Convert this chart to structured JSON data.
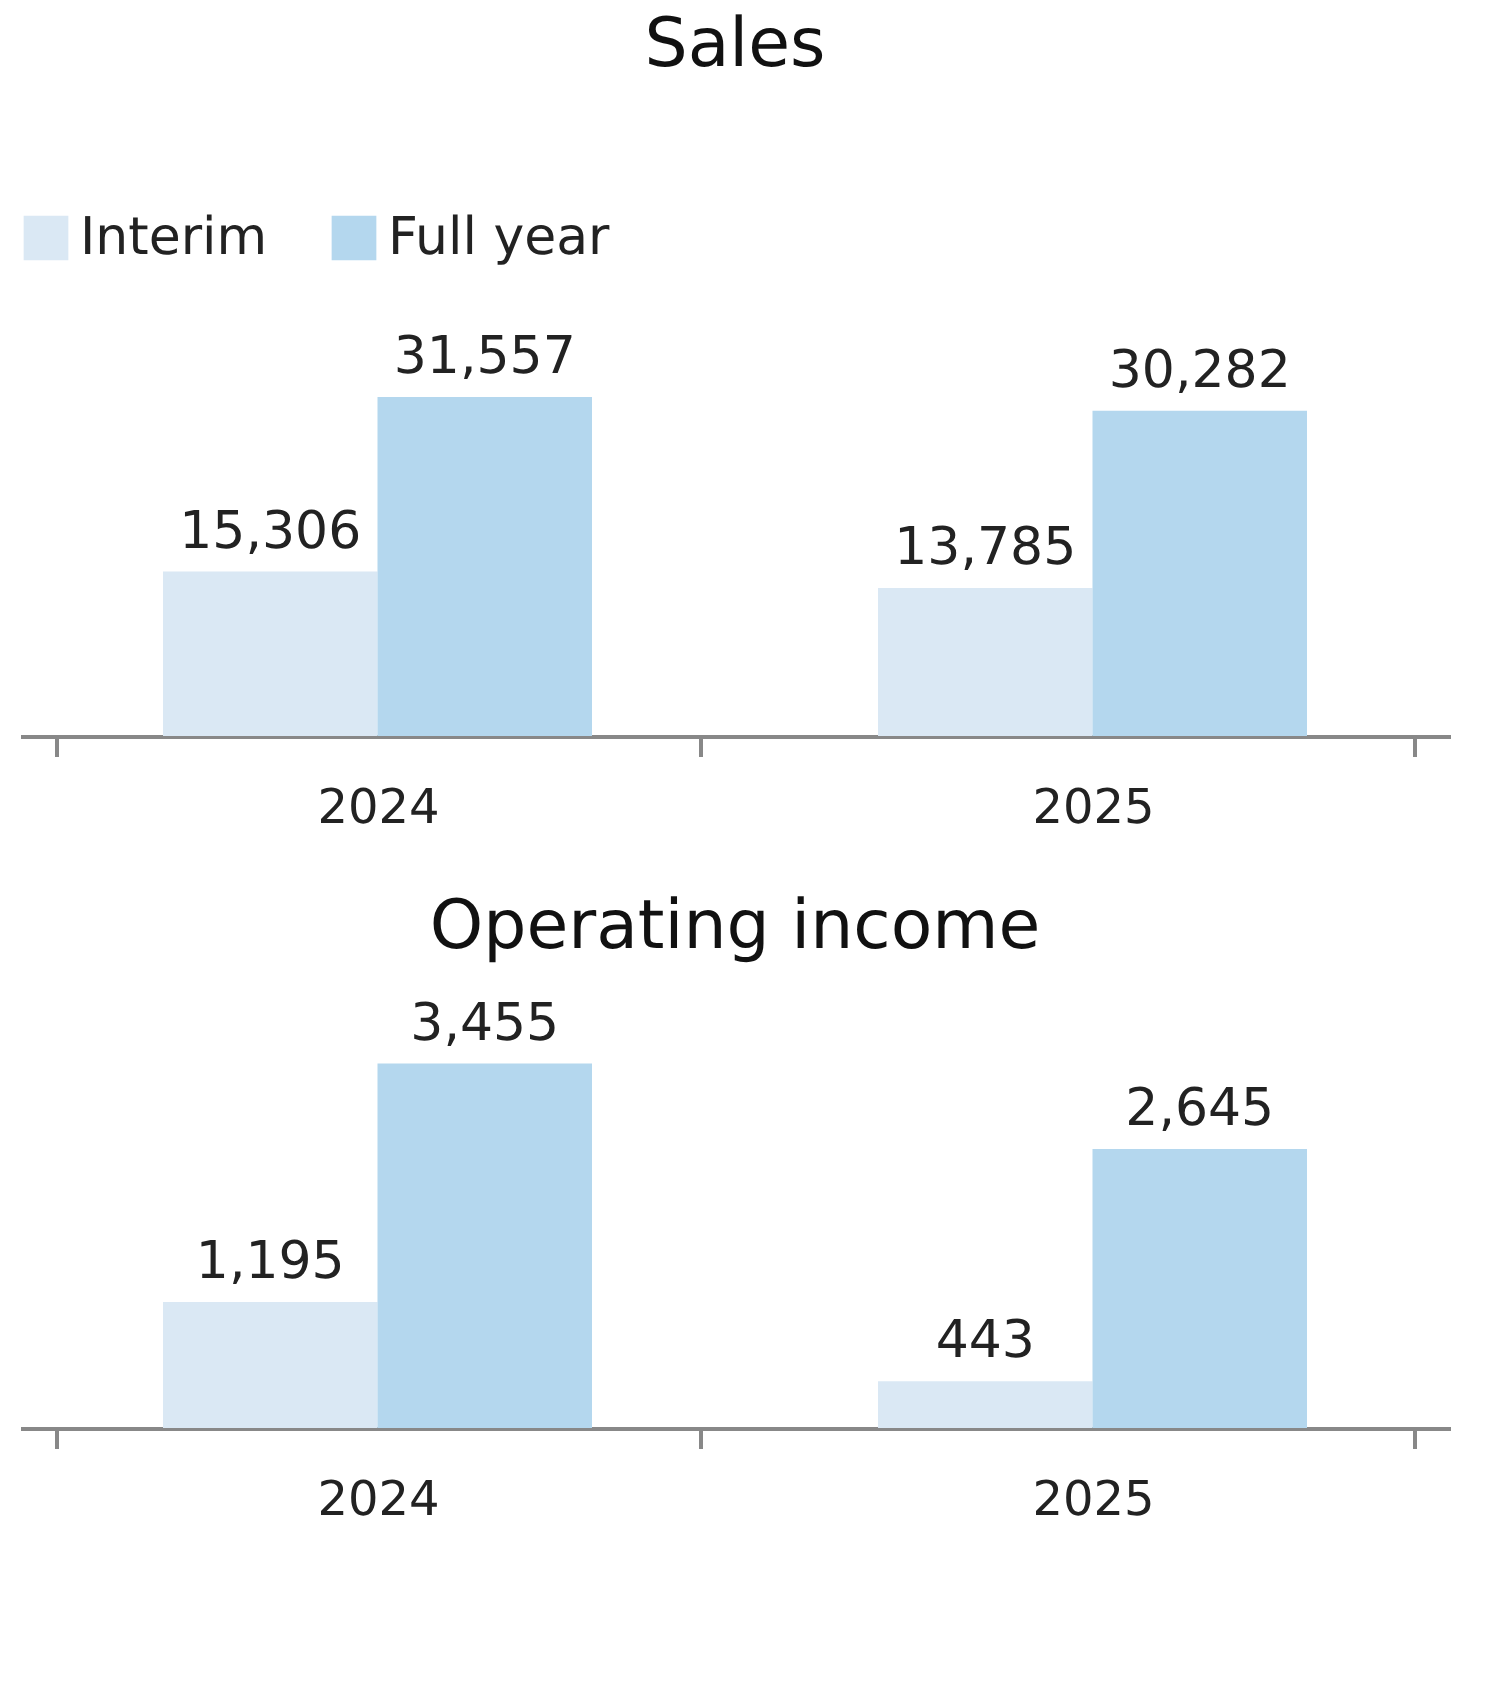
{
  "chart_data": [
    {
      "type": "bar",
      "title": "Sales",
      "categories": [
        "2024",
        "2025"
      ],
      "series": [
        {
          "name": "Interim",
          "color": "#dae8f4",
          "values": [
            15306,
            13785
          ],
          "value_labels": [
            "15,306",
            "13,785"
          ]
        },
        {
          "name": "Full year",
          "color": "#b4d7ee",
          "values": [
            31557,
            30282
          ],
          "value_labels": [
            "31,557",
            "30,282"
          ]
        }
      ],
      "legend": "top left",
      "tick_labels": "x"
    },
    {
      "type": "bar",
      "title": "Operating income",
      "categories": [
        "2024",
        "2025"
      ],
      "series": [
        {
          "color": "#dae8f4",
          "values": [
            1195,
            443
          ],
          "value_labels": [
            "1,195",
            "443"
          ]
        },
        {
          "color": "#b4d7ee",
          "values": [
            3455,
            2645
          ],
          "value_labels": [
            "3,455",
            "2,645"
          ]
        }
      ],
      "legend": false,
      "tick_labels": "x"
    }
  ]
}
